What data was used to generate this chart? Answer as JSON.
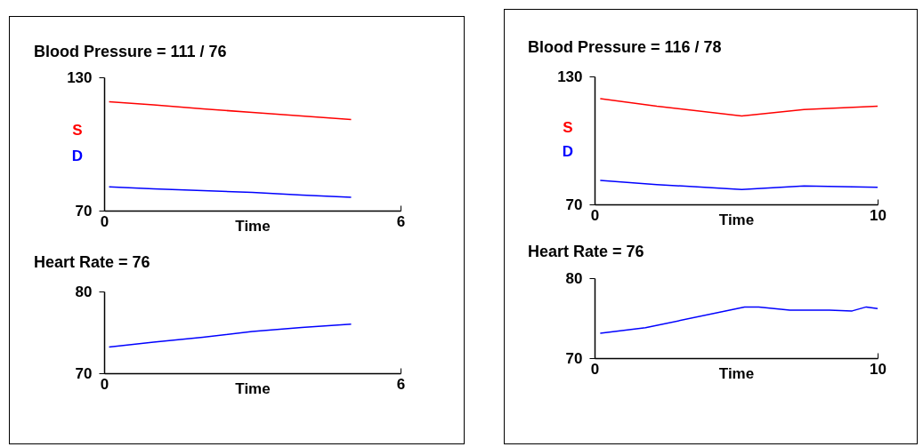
{
  "chart_data": [
    {
      "type": "line",
      "title": "Blood Pressure = 111 / 76",
      "xlabel": "Time",
      "x": [
        0.1,
        1,
        2,
        3,
        4,
        5
      ],
      "xlim": [
        0,
        6
      ],
      "xticks": [
        0,
        6
      ],
      "ylim": [
        70,
        130
      ],
      "yticks": [
        70,
        130
      ],
      "series": [
        {
          "name": "S",
          "color": "#ff0000",
          "values": [
            119,
            117.6,
            115.8,
            114.2,
            112.6,
            111
          ]
        },
        {
          "name": "D",
          "color": "#0000ff",
          "values": [
            80.7,
            79.8,
            79,
            78.2,
            77,
            76
          ]
        }
      ]
    },
    {
      "type": "line",
      "title": "Heart Rate = 76",
      "xlabel": "Time",
      "x": [
        0.1,
        1,
        2,
        3,
        4,
        5
      ],
      "xlim": [
        0,
        6
      ],
      "xticks": [
        0,
        6
      ],
      "ylim": [
        70,
        80
      ],
      "yticks": [
        70,
        80
      ],
      "series": [
        {
          "color": "#0000ff",
          "values": [
            73.2,
            73.8,
            74.4,
            75.1,
            75.6,
            76
          ]
        }
      ]
    },
    {
      "type": "line",
      "title": "Blood Pressure = 116 / 78",
      "xlabel": "Time",
      "x": [
        0.2,
        2.2,
        5.2,
        7.4,
        10
      ],
      "xlim": [
        0,
        10
      ],
      "xticks": [
        0,
        10
      ],
      "ylim": [
        70,
        130
      ],
      "yticks": [
        70,
        130
      ],
      "series": [
        {
          "name": "S",
          "color": "#ff0000",
          "values": [
            119.6,
            116,
            111.5,
            114.5,
            116
          ]
        },
        {
          "name": "D",
          "color": "#0000ff",
          "values": [
            81.2,
            79.3,
            77,
            78.6,
            78
          ]
        }
      ]
    },
    {
      "type": "line",
      "title": "Heart Rate = 76",
      "xlabel": "Time",
      "x": [
        0.2,
        1.8,
        5.3,
        5.8,
        6.9,
        8.3,
        9.1,
        9.6,
        10
      ],
      "xlim": [
        0,
        10
      ],
      "xticks": [
        0,
        10
      ],
      "ylim": [
        70,
        80
      ],
      "yticks": [
        70,
        80
      ],
      "series": [
        {
          "color": "#0000ff",
          "values": [
            73.1,
            73.8,
            76.4,
            76.4,
            76,
            76,
            75.9,
            76.4,
            76.2
          ]
        }
      ]
    }
  ]
}
